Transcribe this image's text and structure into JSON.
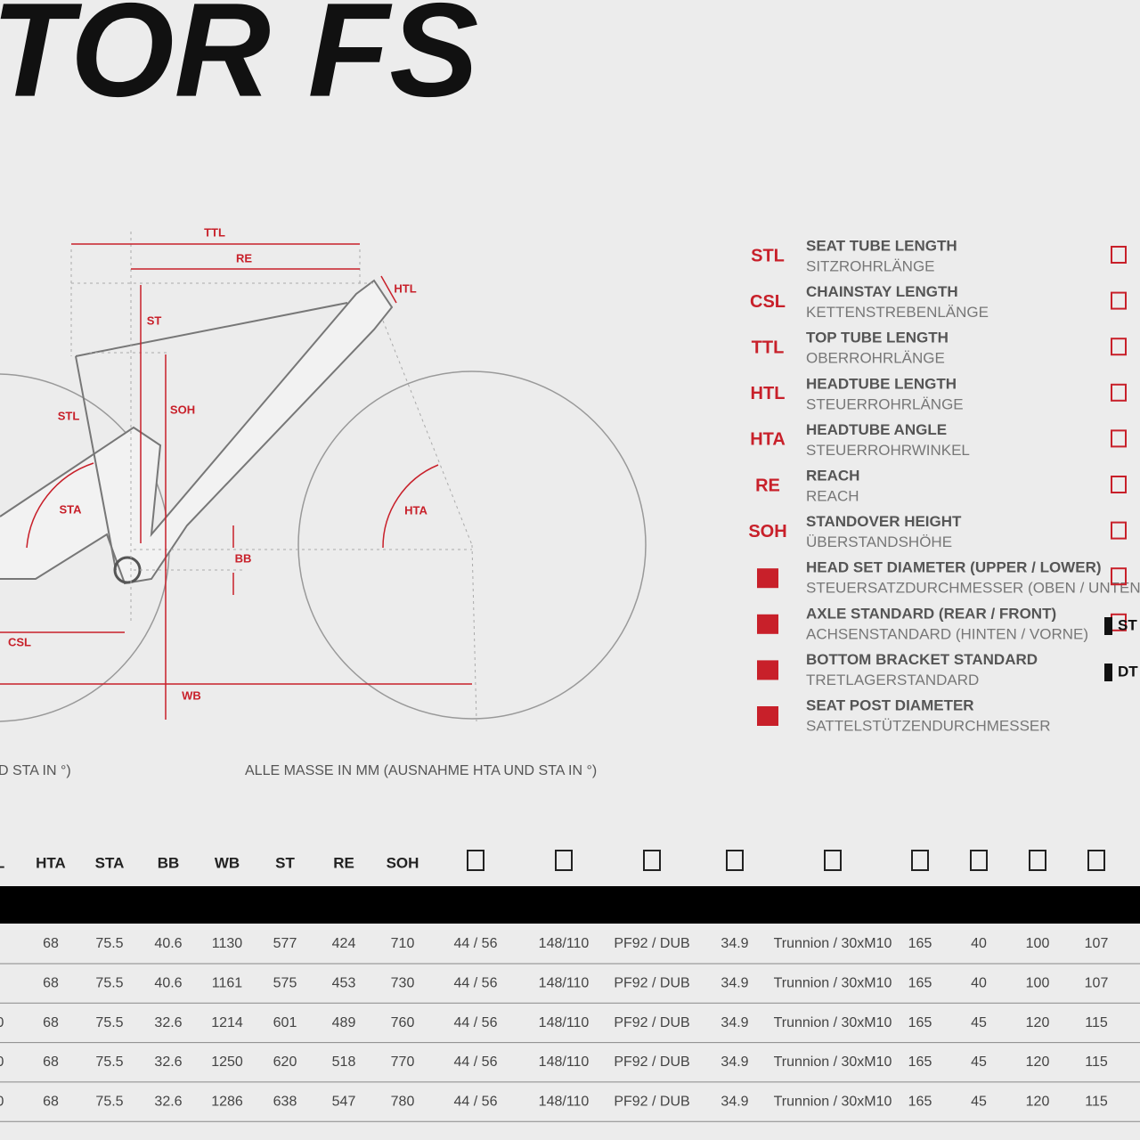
{
  "header": {
    "title": "TOR FS"
  },
  "diagram": {
    "labels": {
      "ttl": "TTL",
      "re": "RE",
      "htl": "HTL",
      "st": "ST",
      "soh": "SOH",
      "stl": "STL",
      "sta": "STA",
      "hta": "HTA",
      "bb": "BB",
      "csl": "CSL",
      "wb": "WB"
    }
  },
  "legend": [
    {
      "abbr": "STL",
      "en": "SEAT TUBE LENGTH",
      "de": "SITZROHRLÄNGE"
    },
    {
      "abbr": "CSL",
      "en": "CHAINSTAY LENGTH",
      "de": "KETTENSTREBENLÄNGE"
    },
    {
      "abbr": "TTL",
      "en": "TOP TUBE LENGTH",
      "de": "OBERROHRLÄNGE"
    },
    {
      "abbr": "HTL",
      "en": "HEADTUBE LENGTH",
      "de": "STEUERROHRLÄNGE"
    },
    {
      "abbr": "HTA",
      "en": "HEADTUBE ANGLE",
      "de": "STEUERROHRWINKEL"
    },
    {
      "abbr": "RE",
      "en": "REACH",
      "de": "REACH"
    },
    {
      "abbr": "SOH",
      "en": "STANDOVER HEIGHT",
      "de": "ÜBERSTANDSHÖHE"
    },
    {
      "en": "HEAD SET DIAMETER (UPPER / LOWER)",
      "de": "STEUERSATZDURCHMESSER (OBEN / UNTEN)"
    },
    {
      "en": "AXLE STANDARD (REAR / FRONT)",
      "de": "ACHSENSTANDARD (HINTEN / VORNE)"
    },
    {
      "en": "BOTTOM BRACKET STANDARD",
      "de": "TRETLAGERSTANDARD"
    },
    {
      "en": "SEAT POST DIAMETER",
      "de": "SATTELSTÜTZENDURCHMESSER"
    }
  ],
  "side_labels": [
    "ST",
    "DT"
  ],
  "notes": [
    "D STA IN °)",
    "ALLE MASSE IN MM (AUSNAHME HTA UND STA IN °)"
  ],
  "table": {
    "headers": [
      "L",
      "HTA",
      "STA",
      "BB",
      "WB",
      "ST",
      "RE",
      "SOH"
    ],
    "rows": [
      {
        "cells": [
          "68",
          "75.5",
          "40.6",
          "1130",
          "577",
          "424",
          "710",
          "44 / 56",
          "148/110",
          "PF92 / DUB",
          "34.9",
          "Trunnion / 30xM10",
          "165",
          "40",
          "100",
          "107"
        ]
      },
      {
        "cells": [
          "68",
          "75.5",
          "40.6",
          "1161",
          "575",
          "453",
          "730",
          "44 / 56",
          "148/110",
          "PF92 / DUB",
          "34.9",
          "Trunnion / 30xM10",
          "165",
          "40",
          "100",
          "107"
        ]
      },
      {
        "edge": "0",
        "cells": [
          "68",
          "75.5",
          "32.6",
          "1214",
          "601",
          "489",
          "760",
          "44 / 56",
          "148/110",
          "PF92 / DUB",
          "34.9",
          "Trunnion / 30xM10",
          "165",
          "45",
          "120",
          "115"
        ]
      },
      {
        "edge": "0",
        "cells": [
          "68",
          "75.5",
          "32.6",
          "1250",
          "620",
          "518",
          "770",
          "44 / 56",
          "148/110",
          "PF92 / DUB",
          "34.9",
          "Trunnion / 30xM10",
          "165",
          "45",
          "120",
          "115"
        ]
      },
      {
        "edge": "0",
        "cells": [
          "68",
          "75.5",
          "32.6",
          "1286",
          "638",
          "547",
          "780",
          "44 / 56",
          "148/110",
          "PF92 / DUB",
          "34.9",
          "Trunnion / 30xM10",
          "165",
          "45",
          "120",
          "115"
        ]
      }
    ]
  }
}
